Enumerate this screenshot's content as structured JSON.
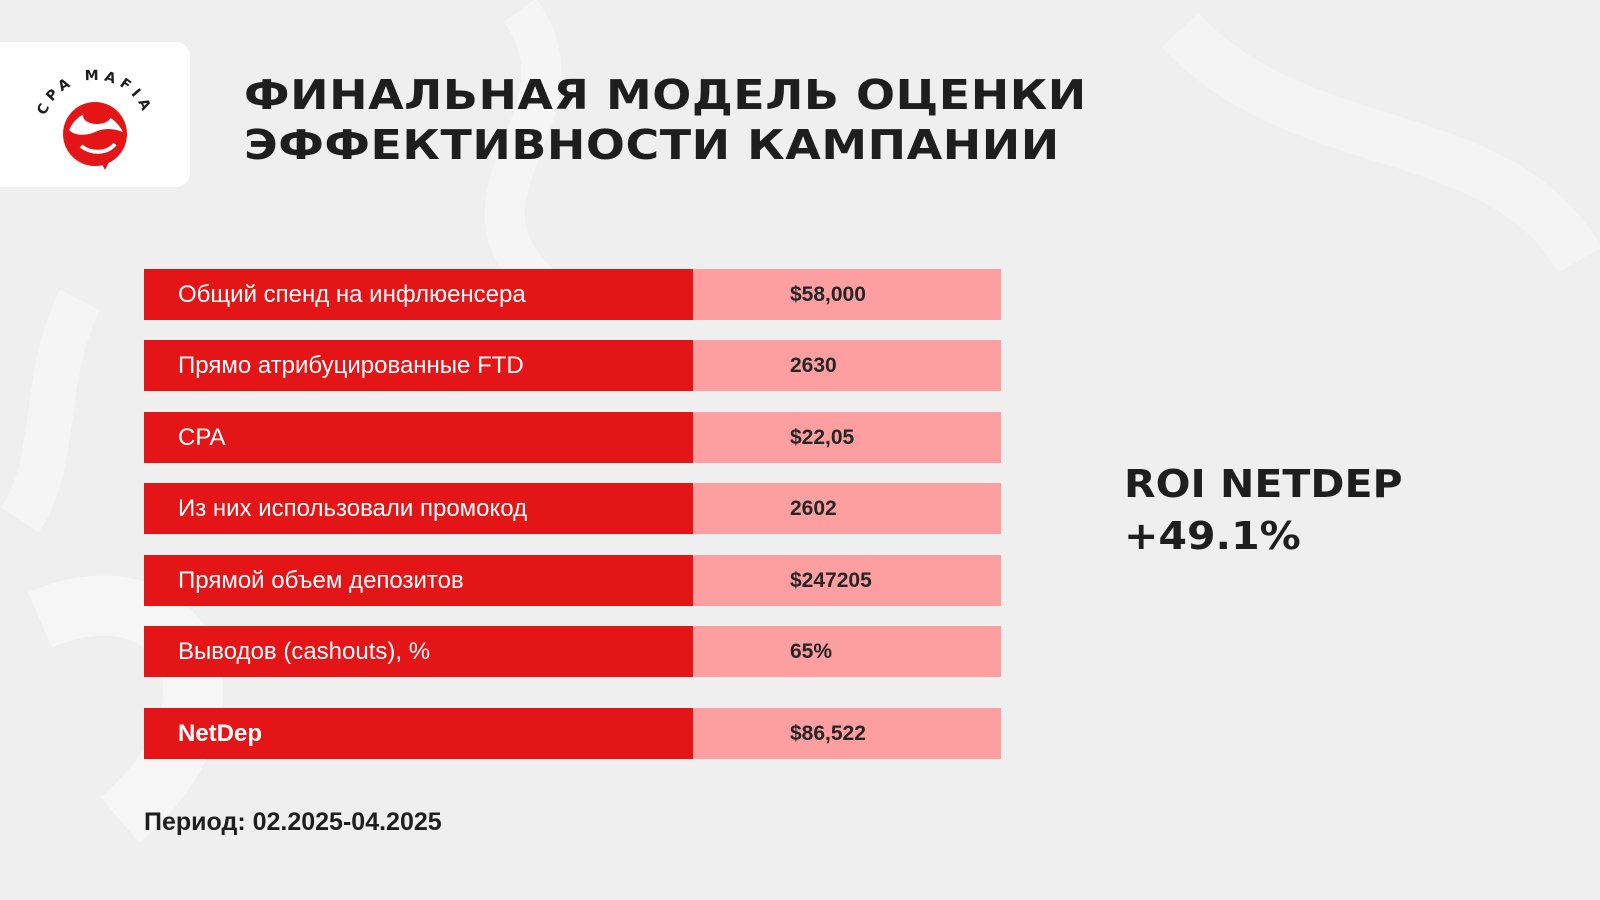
{
  "brand": {
    "name": "CPA MAFIA",
    "accent": "#e31517",
    "value_bg": "#fd9ea0"
  },
  "title": {
    "line1": "ФИНАЛЬНАЯ МОДЕЛЬ ОЦЕНКИ",
    "line2": "ЭФФЕКТИВНОСТИ КАМПАНИИ"
  },
  "metrics": [
    {
      "label": "Общий спенд на инфлюенсера",
      "value": "$58,000"
    },
    {
      "label": "Прямо атрибуцированные FTD",
      "value": "2630"
    },
    {
      "label": "CPA",
      "value": "$22,05"
    },
    {
      "label": "Из них использовали промокод",
      "value": "2602"
    },
    {
      "label": "Прямой объем депозитов",
      "value": "$247205"
    },
    {
      "label": "Выводов (cashouts), %",
      "value": "65%"
    },
    {
      "label": "NetDep",
      "value": "$86,522"
    }
  ],
  "roi": {
    "label": "ROI NETDEP",
    "value": "+49.1%"
  },
  "period": "Период: 02.2025-04.2025"
}
